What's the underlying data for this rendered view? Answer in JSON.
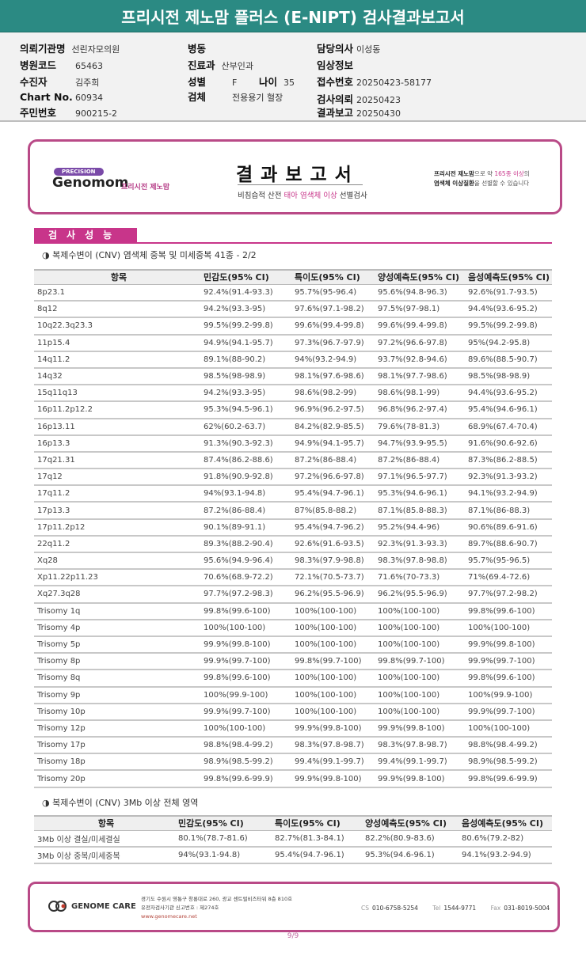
{
  "title": "프리시전 제노맘 플러스 (E-NIPT) 검사결과보고서",
  "info": {
    "institution": {
      "label": "의뢰기관명",
      "value": "선린자모의원"
    },
    "hospital_code": {
      "label": "병원코드",
      "value": "65463"
    },
    "patient": {
      "label": "수진자",
      "value": "김주희"
    },
    "chart_no": {
      "label": "Chart No.",
      "value": "60934"
    },
    "resident_no": {
      "label": "주민번호",
      "value": "900215-2"
    },
    "ward": {
      "label": "병동",
      "value": ""
    },
    "department": {
      "label": "진료과",
      "value": "산부인과"
    },
    "sex": {
      "label": "성별",
      "value": "F"
    },
    "age": {
      "label": "나이",
      "value": "35"
    },
    "specimen": {
      "label": "검체",
      "value": "전용용기 혈장"
    },
    "doctor": {
      "label": "담당의사",
      "value": "이성동"
    },
    "clinical_info": {
      "label": "임상정보",
      "value": ""
    },
    "receipt_no": {
      "label": "접수번호",
      "value": "20250423-58177"
    },
    "request_date": {
      "label": "검사의뢰",
      "value": "20250423"
    },
    "report_date": {
      "label": "결과보고",
      "value": "20250430"
    }
  },
  "banner": {
    "logo_pill": "PRECISION",
    "logo_main": "Genomom",
    "logo_sub": "프리시전 제노맘",
    "title": "결과보고서",
    "subtitle_pre": "비침습적 산전 ",
    "subtitle_highlight": "태아 염색체 이상",
    "subtitle_post": " 선별검사",
    "right_line1_bold": "프리시전 제노맘",
    "right_line1_rest": "으로 약 ",
    "right_line1_highlight": "165종 이상",
    "right_line1_end": "의",
    "right_line2_bold": "염색체 이상질환",
    "right_line2_rest": "을 선별할 수 있습니다"
  },
  "section_title": "검사성능",
  "table1": {
    "subtitle": "◑ 복제수변이 (CNV) 염색체 중복 및 미세중복 41종 - 2/2",
    "headers": [
      "항목",
      "민감도(95% CI)",
      "특이도(95% CI)",
      "양성예측도(95% CI)",
      "음성예측도(95% CI)"
    ],
    "rows": [
      [
        "8p23.1",
        "92.4%(91.4-93.3)",
        "95.7%(95-96.4)",
        "95.6%(94.8-96.3)",
        "92.6%(91.7-93.5)"
      ],
      [
        "8q12",
        "94.2%(93.3-95)",
        "97.6%(97.1-98.2)",
        "97.5%(97-98.1)",
        "94.4%(93.6-95.2)"
      ],
      [
        "10q22.3q23.3",
        "99.5%(99.2-99.8)",
        "99.6%(99.4-99.8)",
        "99.6%(99.4-99.8)",
        "99.5%(99.2-99.8)"
      ],
      [
        "11p15.4",
        "94.9%(94.1-95.7)",
        "97.3%(96.7-97.9)",
        "97.2%(96.6-97.8)",
        "95%(94.2-95.8)"
      ],
      [
        "14q11.2",
        "89.1%(88-90.2)",
        "94%(93.2-94.9)",
        "93.7%(92.8-94.6)",
        "89.6%(88.5-90.7)"
      ],
      [
        "14q32",
        "98.5%(98-98.9)",
        "98.1%(97.6-98.6)",
        "98.1%(97.7-98.6)",
        "98.5%(98-98.9)"
      ],
      [
        "15q11q13",
        "94.2%(93.3-95)",
        "98.6%(98.2-99)",
        "98.6%(98.1-99)",
        "94.4%(93.6-95.2)"
      ],
      [
        "16p11.2p12.2",
        "95.3%(94.5-96.1)",
        "96.9%(96.2-97.5)",
        "96.8%(96.2-97.4)",
        "95.4%(94.6-96.1)"
      ],
      [
        "16p13.11",
        "62%(60.2-63.7)",
        "84.2%(82.9-85.5)",
        "79.6%(78-81.3)",
        "68.9%(67.4-70.4)"
      ],
      [
        "16p13.3",
        "91.3%(90.3-92.3)",
        "94.9%(94.1-95.7)",
        "94.7%(93.9-95.5)",
        "91.6%(90.6-92.6)"
      ],
      [
        "17q21.31",
        "87.4%(86.2-88.6)",
        "87.2%(86-88.4)",
        "87.2%(86-88.4)",
        "87.3%(86.2-88.5)"
      ],
      [
        "17q12",
        "91.8%(90.9-92.8)",
        "97.2%(96.6-97.8)",
        "97.1%(96.5-97.7)",
        "92.3%(91.3-93.2)"
      ],
      [
        "17q11.2",
        "94%(93.1-94.8)",
        "95.4%(94.7-96.1)",
        "95.3%(94.6-96.1)",
        "94.1%(93.2-94.9)"
      ],
      [
        "17p13.3",
        "87.2%(86-88.4)",
        "87%(85.8-88.2)",
        "87.1%(85.8-88.3)",
        "87.1%(86-88.3)"
      ],
      [
        "17p11.2p12",
        "90.1%(89-91.1)",
        "95.4%(94.7-96.2)",
        "95.2%(94.4-96)",
        "90.6%(89.6-91.6)"
      ],
      [
        "22q11.2",
        "89.3%(88.2-90.4)",
        "92.6%(91.6-93.5)",
        "92.3%(91.3-93.3)",
        "89.7%(88.6-90.7)"
      ],
      [
        "Xq28",
        "95.6%(94.9-96.4)",
        "98.3%(97.9-98.8)",
        "98.3%(97.8-98.8)",
        "95.7%(95-96.5)"
      ],
      [
        "Xp11.22p11.23",
        "70.6%(68.9-72.2)",
        "72.1%(70.5-73.7)",
        "71.6%(70-73.3)",
        "71%(69.4-72.6)"
      ],
      [
        "Xq27.3q28",
        "97.7%(97.2-98.3)",
        "96.2%(95.5-96.9)",
        "96.2%(95.5-96.9)",
        "97.7%(97.2-98.2)"
      ],
      [
        "Trisomy 1q",
        "99.8%(99.6-100)",
        "100%(100-100)",
        "100%(100-100)",
        "99.8%(99.6-100)"
      ],
      [
        "Trisomy 4p",
        "100%(100-100)",
        "100%(100-100)",
        "100%(100-100)",
        "100%(100-100)"
      ],
      [
        "Trisomy 5p",
        "99.9%(99.8-100)",
        "100%(100-100)",
        "100%(100-100)",
        "99.9%(99.8-100)"
      ],
      [
        "Trisomy 8p",
        "99.9%(99.7-100)",
        "99.8%(99.7-100)",
        "99.8%(99.7-100)",
        "99.9%(99.7-100)"
      ],
      [
        "Trisomy 8q",
        "99.8%(99.6-100)",
        "100%(100-100)",
        "100%(100-100)",
        "99.8%(99.6-100)"
      ],
      [
        "Trisomy 9p",
        "100%(99.9-100)",
        "100%(100-100)",
        "100%(100-100)",
        "100%(99.9-100)"
      ],
      [
        "Trisomy 10p",
        "99.9%(99.7-100)",
        "100%(100-100)",
        "100%(100-100)",
        "99.9%(99.7-100)"
      ],
      [
        "Trisomy 12p",
        "100%(100-100)",
        "99.9%(99.8-100)",
        "99.9%(99.8-100)",
        "100%(100-100)"
      ],
      [
        "Trisomy 17p",
        "98.8%(98.4-99.2)",
        "98.3%(97.8-98.7)",
        "98.3%(97.8-98.7)",
        "98.8%(98.4-99.2)"
      ],
      [
        "Trisomy 18p",
        "98.9%(98.5-99.2)",
        "99.4%(99.1-99.7)",
        "99.4%(99.1-99.7)",
        "98.9%(98.5-99.2)"
      ],
      [
        "Trisomy 20p",
        "99.8%(99.6-99.9)",
        "99.9%(99.8-100)",
        "99.9%(99.8-100)",
        "99.8%(99.6-99.9)"
      ]
    ]
  },
  "table2": {
    "subtitle": "◑ 복제수변이 (CNV) 3Mb 이상 전체 영역",
    "headers": [
      "항목",
      "민감도(95% CI)",
      "특이도(95% CI)",
      "양성예측도(95% CI)",
      "음성예측도(95% CI)"
    ],
    "rows": [
      [
        "3Mb 이상 결실/미세결실",
        "80.1%(78.7-81.6)",
        "82.7%(81.3-84.1)",
        "82.2%(80.9-83.6)",
        "80.6%(79.2-82)"
      ],
      [
        "3Mb 이상 중복/미세중복",
        "94%(93.1-94.8)",
        "95.4%(94.7-96.1)",
        "95.3%(94.6-96.1)",
        "94.1%(93.2-94.9)"
      ]
    ]
  },
  "footer": {
    "logo": "GENOME CARE",
    "address": "경기도 수원시 영통구 창룡대로 260, 광교 센트럴비즈타워 8층 810호",
    "registration": "유전자검사기관 신고번호 : 제274호",
    "url": "www.genomecare.net",
    "cs_label": "CS",
    "cs": "010-6758-5254",
    "tel_label": "Tel",
    "tel": "1544-9771",
    "fax_label": "Fax",
    "fax": "031-8019-5004"
  },
  "page_number": "9/9",
  "colors": {
    "title_bar": "#2b8a83",
    "accent": "#c8358a",
    "border": "#b94a87"
  }
}
